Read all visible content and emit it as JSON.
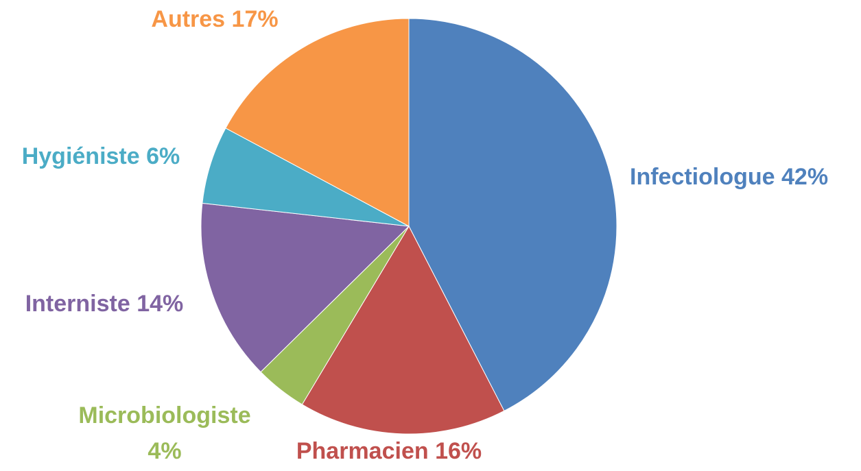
{
  "chart_data": {
    "type": "pie",
    "categories": [
      "Infectiologue",
      "Pharmacien",
      "Microbiologiste",
      "Interniste",
      "Hygiéniste",
      "Autres"
    ],
    "values": [
      42,
      16,
      4,
      14,
      6,
      17
    ],
    "value_labels": [
      "42%",
      "16%",
      "4%",
      "14%",
      "6%",
      "17%"
    ],
    "colors": [
      "#4f81bd",
      "#c0504d",
      "#9bbb59",
      "#8064a2",
      "#4bacc6",
      "#f79646"
    ]
  }
}
